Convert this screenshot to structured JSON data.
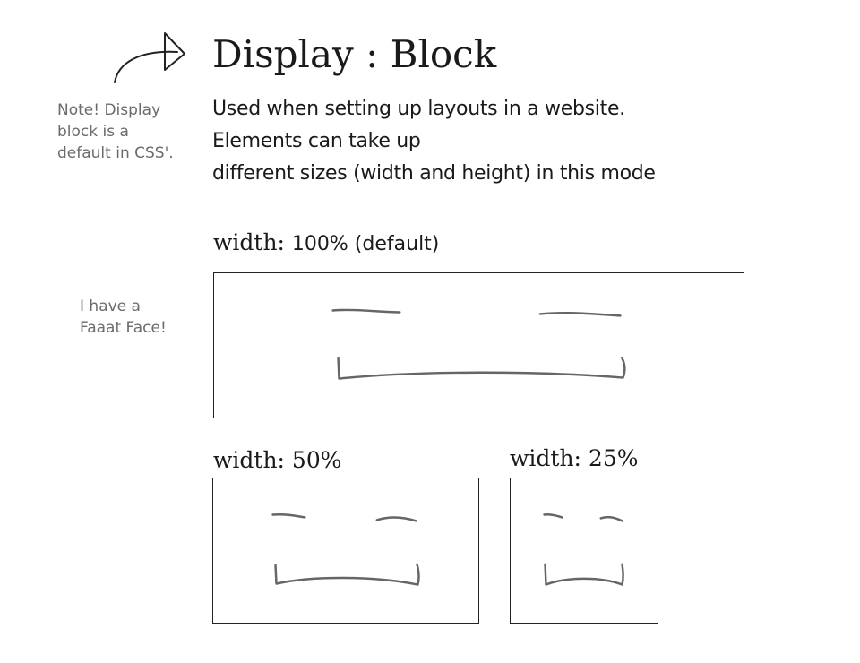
{
  "title": "Display : Block",
  "description": [
    "Used when setting up layouts in a website.",
    "Elements can take up",
    "different sizes (width and height) in this mode"
  ],
  "note": [
    "Note! Display",
    "block is a",
    "default in CSS'."
  ],
  "side_note": [
    "I have a",
    "Faaat Face!"
  ],
  "examples": {
    "full": {
      "label_prefix": "width: ",
      "label_value": "100% (default)"
    },
    "half": {
      "label_prefix": "width: ",
      "label_value": "50%"
    },
    "quarter": {
      "label_prefix": "width: ",
      "label_value": "25%"
    }
  },
  "colors": {
    "ink": "#1a1a1a",
    "pencil": "#666666",
    "note": "#6b6b6b",
    "border": "#222222"
  }
}
